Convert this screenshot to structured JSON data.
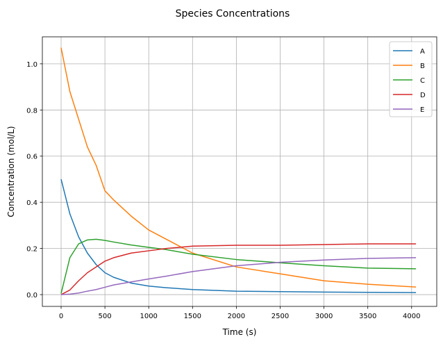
{
  "chart_data": {
    "type": "line",
    "title": "Species Concentrations",
    "xlabel": "Time (s)",
    "ylabel": "Concentration (mol/L)",
    "xlim": [
      -214,
      4287
    ],
    "ylim": [
      -0.051,
      1.117
    ],
    "xticks": [
      0,
      500,
      1000,
      1500,
      2000,
      2500,
      3000,
      3500,
      4000
    ],
    "yticks": [
      0.0,
      0.2,
      0.4,
      0.6,
      0.8,
      1.0
    ],
    "ytick_labels": [
      "0.0",
      "0.2",
      "0.4",
      "0.6",
      "0.8",
      "1.0"
    ],
    "grid": true,
    "legend_position": "top-right",
    "x": [
      0,
      100,
      200,
      300,
      400,
      500,
      600,
      800,
      1000,
      1200,
      1500,
      2000,
      2500,
      3000,
      3500,
      4050
    ],
    "series": [
      {
        "name": "A",
        "color": "#1f77b4",
        "values": [
          0.5,
          0.35,
          0.25,
          0.18,
          0.13,
          0.095,
          0.075,
          0.05,
          0.037,
          0.03,
          0.022,
          0.015,
          0.013,
          0.011,
          0.01,
          0.009
        ]
      },
      {
        "name": "B",
        "color": "#ff7f0e",
        "values": [
          1.07,
          0.88,
          0.76,
          0.64,
          0.56,
          0.45,
          0.41,
          0.34,
          0.28,
          0.24,
          0.18,
          0.12,
          0.09,
          0.06,
          0.045,
          0.033
        ]
      },
      {
        "name": "C",
        "color": "#2ca02c",
        "values": [
          0.005,
          0.16,
          0.22,
          0.237,
          0.24,
          0.235,
          0.228,
          0.215,
          0.205,
          0.195,
          0.175,
          0.152,
          0.138,
          0.125,
          0.115,
          0.112
        ]
      },
      {
        "name": "D",
        "color": "#d62728",
        "values": [
          0,
          0.02,
          0.06,
          0.095,
          0.12,
          0.145,
          0.16,
          0.18,
          0.19,
          0.2,
          0.21,
          0.214,
          0.214,
          0.217,
          0.22,
          0.22
        ]
      },
      {
        "name": "E",
        "color": "#9467bd",
        "values": [
          0,
          0.002,
          0.007,
          0.015,
          0.022,
          0.032,
          0.042,
          0.055,
          0.068,
          0.08,
          0.1,
          0.125,
          0.14,
          0.15,
          0.157,
          0.16
        ]
      }
    ]
  }
}
